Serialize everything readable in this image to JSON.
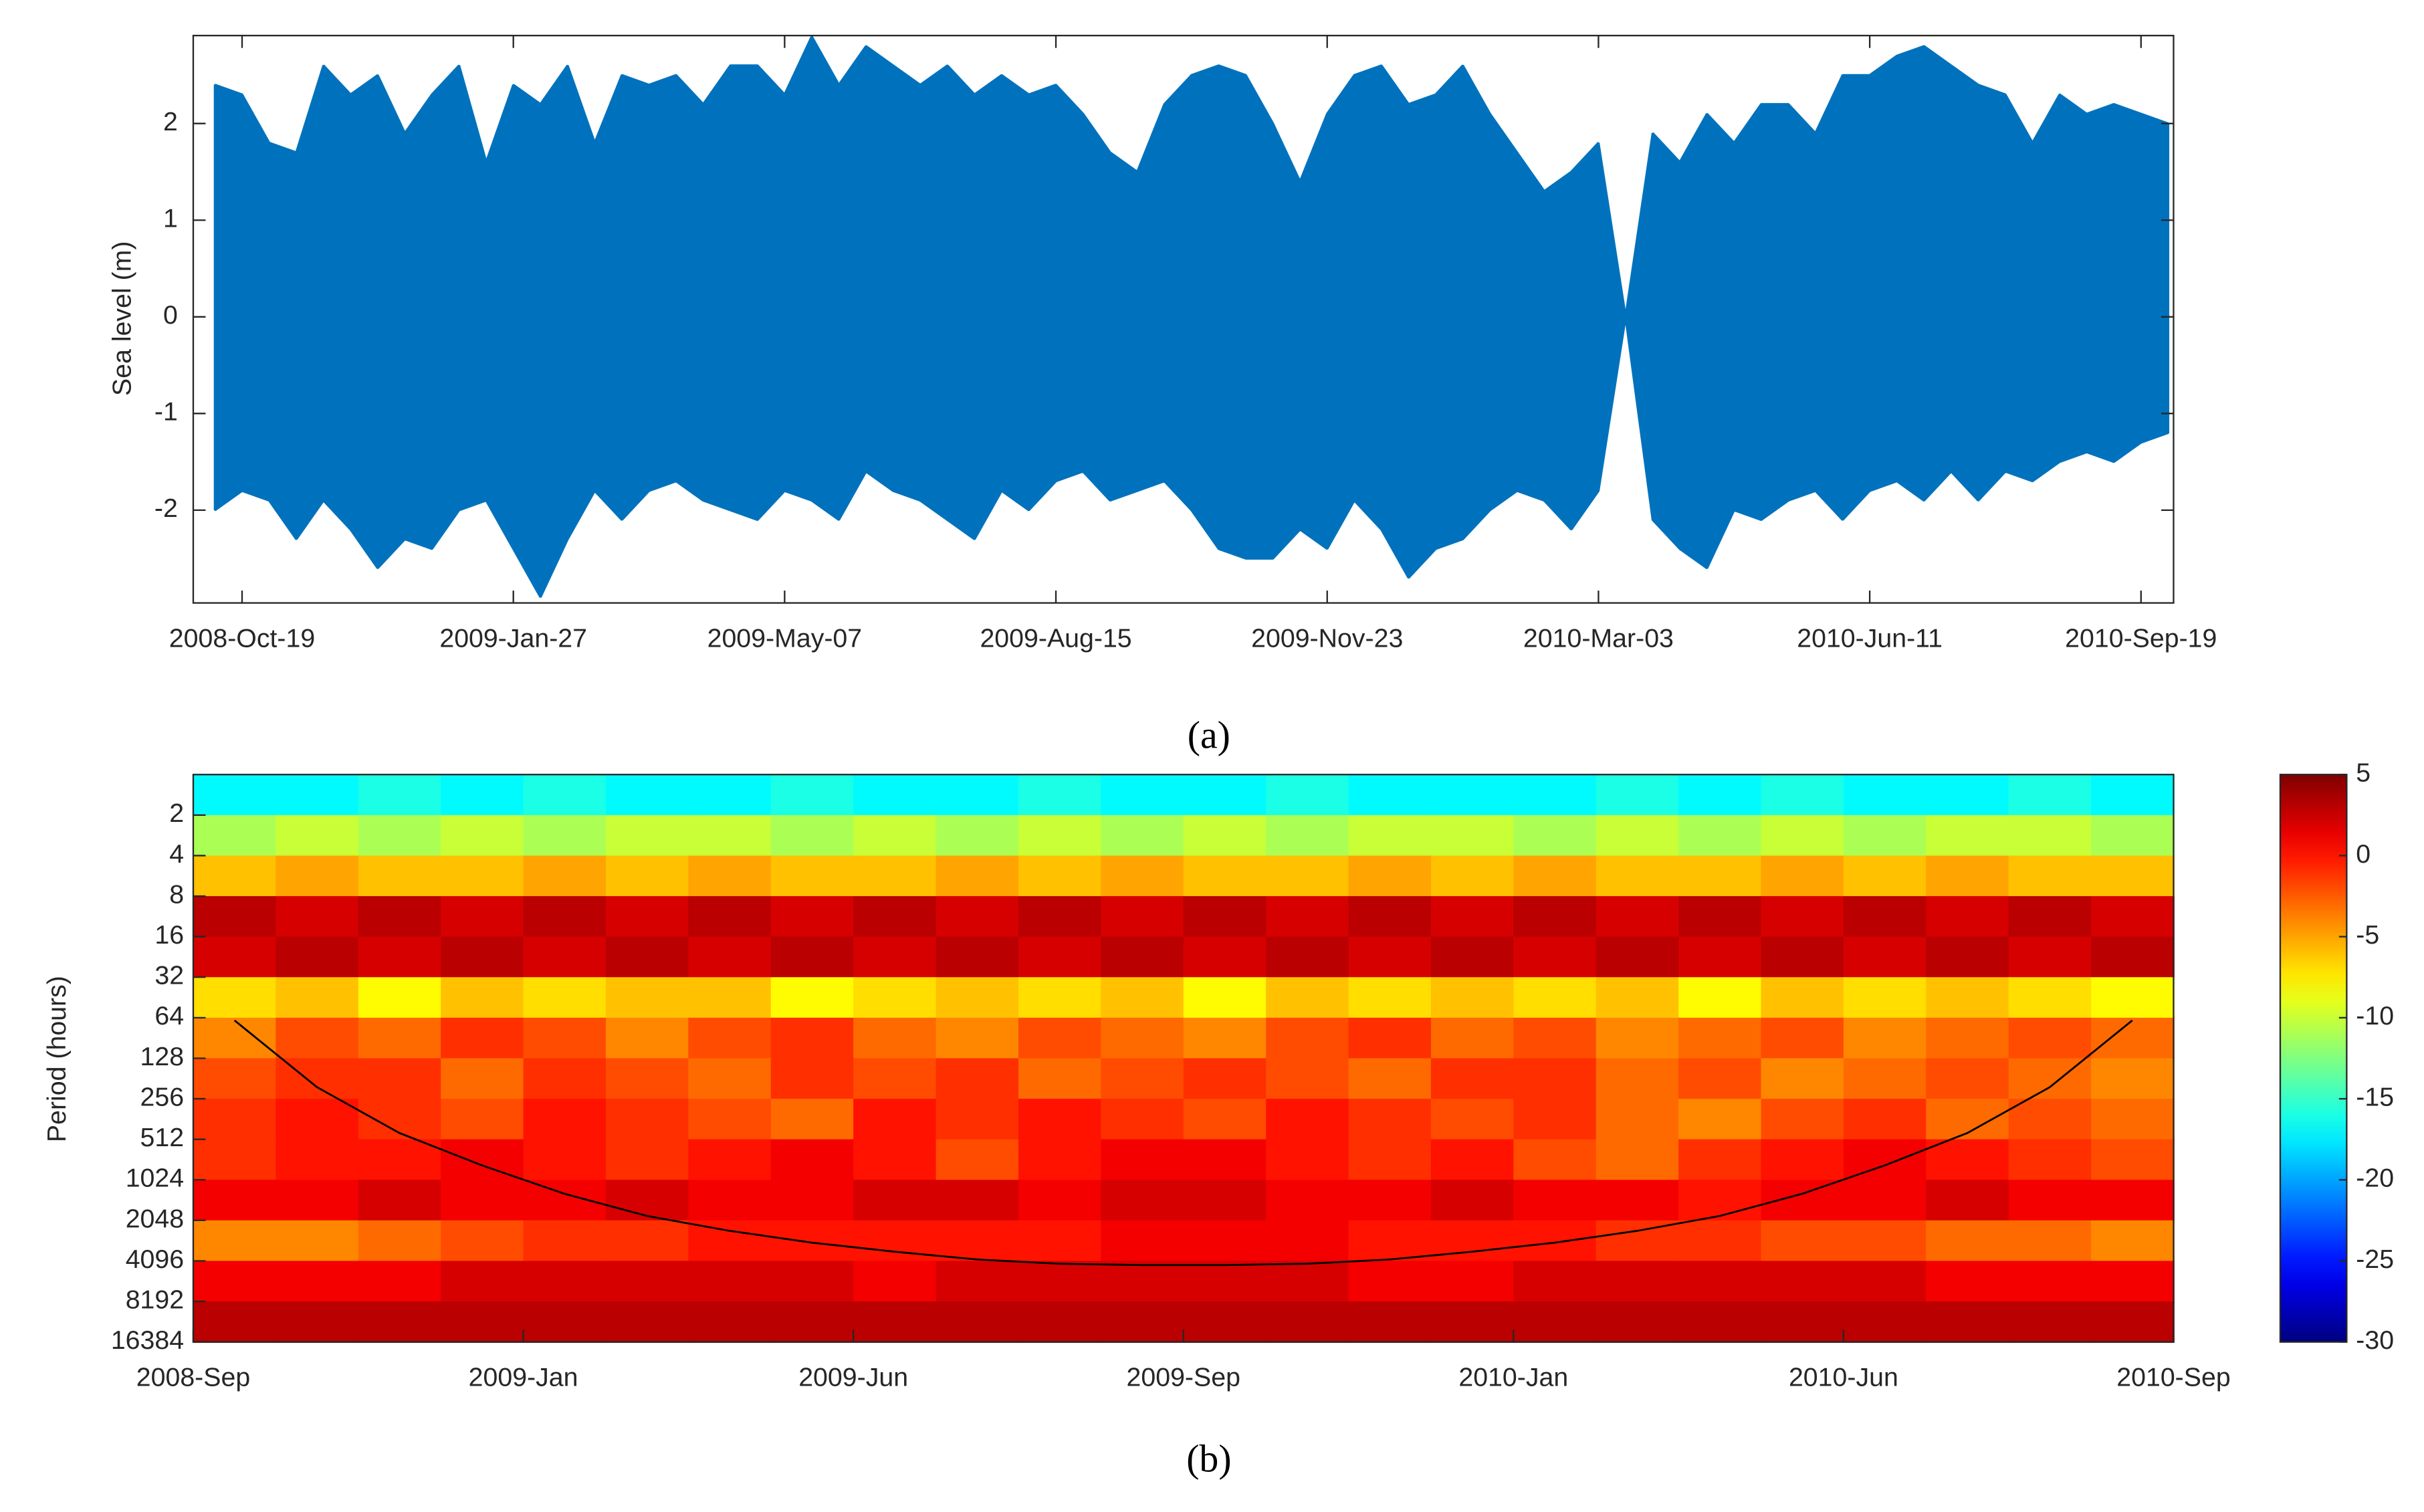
{
  "chart_data": [
    {
      "type": "range",
      "color": "#0072bd",
      "x": [
        "2008-Oct-09",
        "2008-Oct-19",
        "2008-Oct-29",
        "2008-Nov-08",
        "2008-Nov-18",
        "2008-Nov-28",
        "2008-Dec-08",
        "2008-Dec-18",
        "2008-Dec-28",
        "2009-Jan-07",
        "2009-Jan-17",
        "2009-Jan-27",
        "2009-Feb-06",
        "2009-Feb-16",
        "2009-Feb-26",
        "2009-Mar-08",
        "2009-Mar-18",
        "2009-Mar-28",
        "2009-Apr-07",
        "2009-Apr-17",
        "2009-Apr-27",
        "2009-May-07",
        "2009-May-17",
        "2009-May-27",
        "2009-Jun-06",
        "2009-Jun-16",
        "2009-Jun-26",
        "2009-Jul-06",
        "2009-Jul-16",
        "2009-Jul-26",
        "2009-Aug-05",
        "2009-Aug-15",
        "2009-Aug-25",
        "2009-Sep-04",
        "2009-Sep-14",
        "2009-Sep-24",
        "2009-Oct-04",
        "2009-Oct-14",
        "2009-Oct-24",
        "2009-Nov-03",
        "2009-Nov-13",
        "2009-Nov-23",
        "2009-Dec-03",
        "2009-Dec-13",
        "2009-Dec-23",
        "2010-Jan-02",
        "2010-Jan-12",
        "2010-Jan-22",
        "2010-Feb-01",
        "2010-Feb-11",
        "2010-Feb-21",
        "2010-Mar-03",
        "2010-Mar-13",
        "2010-Mar-23",
        "2010-Apr-02",
        "2010-Apr-12",
        "2010-Apr-22",
        "2010-May-02",
        "2010-May-12",
        "2010-May-22",
        "2010-Jun-01",
        "2010-Jun-11",
        "2010-Jun-21",
        "2010-Jul-01",
        "2010-Jul-11",
        "2010-Jul-21",
        "2010-Jul-31",
        "2010-Aug-10",
        "2010-Aug-20",
        "2010-Aug-30",
        "2010-Sep-09",
        "2010-Sep-19",
        "2010-Sep-29"
      ],
      "upper": [
        2.4,
        2.3,
        1.8,
        1.7,
        2.6,
        2.3,
        2.5,
        1.9,
        2.3,
        2.6,
        1.6,
        2.4,
        2.2,
        2.6,
        1.8,
        2.5,
        2.4,
        2.5,
        2.2,
        2.6,
        2.6,
        2.3,
        2.9,
        2.4,
        2.8,
        2.6,
        2.4,
        2.6,
        2.3,
        2.5,
        2.3,
        2.4,
        2.1,
        1.7,
        1.5,
        2.2,
        2.5,
        2.6,
        2.5,
        2.0,
        1.4,
        2.1,
        2.5,
        2.6,
        2.2,
        2.3,
        2.6,
        2.1,
        1.7,
        1.3,
        1.5,
        1.8,
        0,
        1.9,
        1.6,
        2.1,
        1.8,
        2.2,
        2.2,
        1.9,
        2.5,
        2.5,
        2.7,
        2.8,
        2.6,
        2.4,
        2.3,
        1.8,
        2.3,
        2.1,
        2.2,
        2.1,
        2.0
      ],
      "lower": [
        -2.0,
        -1.8,
        -1.9,
        -2.3,
        -1.9,
        -2.2,
        -2.6,
        -2.3,
        -2.4,
        -2.0,
        -1.9,
        -2.4,
        -2.9,
        -2.3,
        -1.8,
        -2.1,
        -1.8,
        -1.7,
        -1.9,
        -2.0,
        -2.1,
        -1.8,
        -1.9,
        -2.1,
        -1.6,
        -1.8,
        -1.9,
        -2.1,
        -2.3,
        -1.8,
        -2.0,
        -1.7,
        -1.6,
        -1.9,
        -1.8,
        -1.7,
        -2.0,
        -2.4,
        -2.5,
        -2.5,
        -2.2,
        -2.4,
        -1.9,
        -2.2,
        -2.7,
        -2.4,
        -2.3,
        -2.0,
        -1.8,
        -1.9,
        -2.2,
        -1.8,
        0,
        -2.1,
        -2.4,
        -2.6,
        -2.0,
        -2.1,
        -1.9,
        -1.8,
        -2.1,
        -1.8,
        -1.7,
        -1.9,
        -1.6,
        -1.9,
        -1.6,
        -1.7,
        -1.5,
        -1.4,
        -1.5,
        -1.3,
        -1.2
      ],
      "xlim": [
        "2008-Oct-01",
        "2010-Oct-01"
      ],
      "xticks": [
        "2008-Oct-19",
        "2009-Jan-27",
        "2009-May-07",
        "2009-Aug-15",
        "2009-Nov-23",
        "2010-Mar-03",
        "2010-Jun-11",
        "2010-Sep-19"
      ],
      "ylim": [
        -2.96,
        2.91
      ],
      "yticks": [
        -2,
        -1,
        0,
        1,
        2
      ],
      "ylabel": "Sea level (m)",
      "caption": "(a)"
    },
    {
      "type": "heatmap",
      "colormap": "jet",
      "clim": [
        -30,
        5
      ],
      "xticks": [
        "2008-Sep",
        "2009-Jan",
        "2009-Jun",
        "2009-Sep",
        "2010-Jan",
        "2010-Jun",
        "2010-Sep"
      ],
      "ylabel": "Period (hours)",
      "log_y": true,
      "y_reversed": true,
      "ylim": [
        1,
        16384
      ],
      "yticks": [
        2,
        4,
        8,
        16,
        32,
        64,
        128,
        256,
        512,
        1024,
        2048,
        4096,
        8192,
        16384
      ],
      "period_bins": [
        1,
        2,
        4,
        8,
        16,
        32,
        64,
        128,
        256,
        512,
        1024,
        2048,
        4096,
        8192,
        16384
      ],
      "z": [
        [
          -17,
          -17,
          -16,
          -17,
          -16,
          -17,
          -17,
          -16,
          -17,
          -17,
          -16,
          -17,
          -17,
          -16,
          -17,
          -17,
          -17,
          -16,
          -17,
          -16,
          -17,
          -17,
          -16,
          -17
        ],
        [
          -11,
          -10,
          -11,
          -10,
          -11,
          -10,
          -10,
          -11,
          -10,
          -11,
          -10,
          -11,
          -10,
          -11,
          -10,
          -10,
          -11,
          -10,
          -11,
          -10,
          -11,
          -10,
          -10,
          -11
        ],
        [
          -6,
          -5,
          -6,
          -6,
          -5,
          -6,
          -5,
          -6,
          -6,
          -5,
          -6,
          -5,
          -6,
          -6,
          -5,
          -6,
          -5,
          -6,
          -6,
          -5,
          -6,
          -5,
          -6,
          -6
        ],
        [
          3,
          2,
          3,
          2,
          3,
          2,
          3,
          2,
          3,
          2,
          3,
          2,
          3,
          2,
          3,
          2,
          3,
          2,
          3,
          2,
          3,
          2,
          3,
          2
        ],
        [
          2,
          3,
          2,
          3,
          2,
          3,
          2,
          3,
          2,
          3,
          2,
          3,
          2,
          3,
          2,
          3,
          2,
          3,
          2,
          3,
          2,
          3,
          2,
          3
        ],
        [
          -7,
          -6,
          -8,
          -6,
          -7,
          -6,
          -6,
          -8,
          -7,
          -6,
          -7,
          -6,
          -8,
          -6,
          -7,
          -6,
          -7,
          -6,
          -8,
          -6,
          -7,
          -6,
          -7,
          -8
        ],
        [
          -4,
          -2,
          -3,
          -1,
          -2,
          -4,
          -2,
          -1,
          -3,
          -4,
          -2,
          -3,
          -4,
          -2,
          -1,
          -3,
          -2,
          -4,
          -3,
          -2,
          -4,
          -3,
          -2,
          -3
        ],
        [
          -2,
          -1,
          -1,
          -3,
          -1,
          -2,
          -3,
          -1,
          -2,
          -1,
          -3,
          -2,
          -1,
          -2,
          -3,
          -1,
          -1,
          -3,
          -2,
          -4,
          -3,
          -2,
          -3,
          -4
        ],
        [
          -1,
          0,
          -1,
          -2,
          0,
          -1,
          -2,
          -3,
          0,
          -1,
          0,
          -1,
          -2,
          0,
          -1,
          -2,
          -1,
          -3,
          -4,
          -2,
          -1,
          -3,
          -2,
          -3
        ],
        [
          -1,
          0,
          0,
          1,
          0,
          -1,
          0,
          1,
          0,
          -2,
          0,
          1,
          1,
          0,
          -1,
          0,
          -2,
          -3,
          -1,
          0,
          1,
          0,
          -1,
          -2
        ],
        [
          1,
          1,
          2,
          1,
          1,
          2,
          1,
          1,
          2,
          2,
          1,
          2,
          2,
          1,
          1,
          2,
          1,
          1,
          0,
          1,
          1,
          2,
          1,
          1
        ],
        [
          -4,
          -4,
          -3,
          -2,
          -1,
          -1,
          0,
          0,
          0,
          0,
          0,
          1,
          1,
          1,
          0,
          0,
          0,
          -1,
          -1,
          -2,
          -2,
          -3,
          -3,
          -4
        ],
        [
          1,
          1,
          1,
          2,
          2,
          2,
          2,
          2,
          1,
          2,
          2,
          2,
          2,
          2,
          1,
          1,
          2,
          2,
          2,
          2,
          2,
          1,
          1,
          1
        ],
        [
          3,
          3,
          3,
          3,
          3,
          3,
          3,
          3,
          3,
          3,
          3,
          3,
          3,
          3,
          3,
          3,
          3,
          3,
          3,
          3,
          3,
          3,
          3,
          3
        ]
      ],
      "coi": [
        67,
        210,
        460,
        800,
        1300,
        1900,
        2450,
        3000,
        3500,
        4000,
        4300,
        4400,
        4400,
        4300,
        4000,
        3500,
        3000,
        2450,
        1900,
        1300,
        800,
        460,
        210,
        67
      ],
      "coi_color": "#000000",
      "colorbar_ticks": [
        5,
        0,
        -5,
        -10,
        -15,
        -20,
        -25,
        -30
      ],
      "caption": "(b)"
    }
  ]
}
